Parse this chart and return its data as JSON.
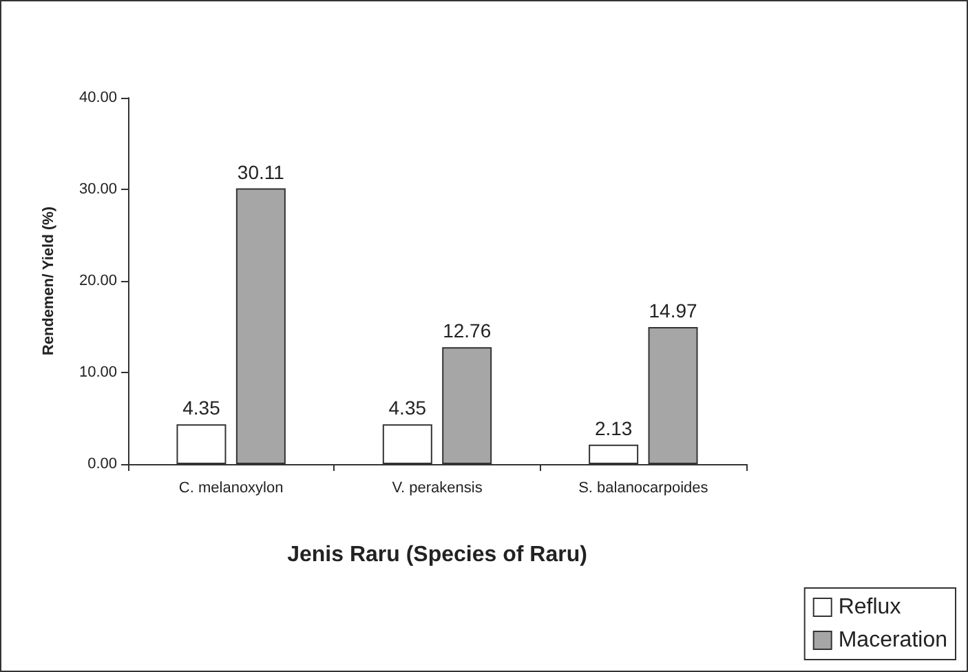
{
  "chart_data": {
    "type": "bar",
    "xlabel": "Jenis Raru (Species of Raru)",
    "ylabel": "Rendemen/ Yield (%)",
    "categories": [
      "C. melanoxylon",
      "V. perakensis",
      "S. balanocarpoides"
    ],
    "series": [
      {
        "name": "Reflux",
        "color": "#ffffff",
        "values": [
          4.35,
          4.35,
          2.13
        ]
      },
      {
        "name": "Maceration",
        "color": "#a6a6a6",
        "values": [
          30.11,
          12.76,
          14.97
        ]
      }
    ],
    "ylim": [
      0,
      40
    ],
    "yticks": [
      {
        "value": 0,
        "label": "0.00"
      },
      {
        "value": 10,
        "label": "10.00"
      },
      {
        "value": 20,
        "label": "20.00"
      },
      {
        "value": 30,
        "label": "30.00"
      },
      {
        "value": 40,
        "label": "40.00"
      }
    ],
    "data_labels": true,
    "grid": false,
    "legend": "bottom right"
  }
}
